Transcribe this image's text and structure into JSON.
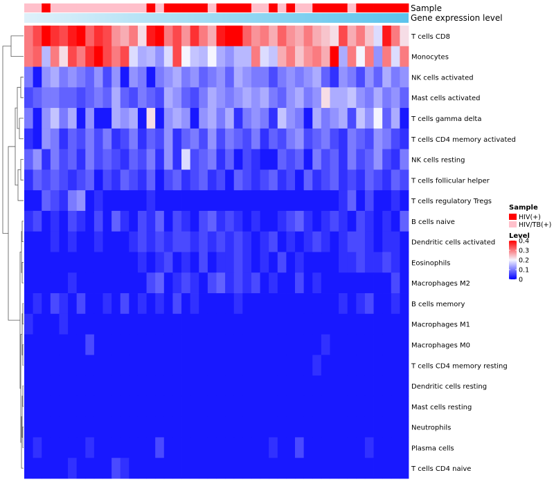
{
  "chart_data": {
    "type": "heatmap",
    "title": "",
    "annotation_tracks": [
      "Sample",
      "Gene expression level"
    ],
    "sample_groups": [
      "HIV/TB(+)",
      "HIV/TB(+)",
      "HIV(+)",
      "HIV/TB(+)",
      "HIV/TB(+)",
      "HIV/TB(+)",
      "HIV/TB(+)",
      "HIV/TB(+)",
      "HIV/TB(+)",
      "HIV/TB(+)",
      "HIV/TB(+)",
      "HIV/TB(+)",
      "HIV/TB(+)",
      "HIV/TB(+)",
      "HIV(+)",
      "HIV/TB(+)",
      "HIV(+)",
      "HIV(+)",
      "HIV(+)",
      "HIV(+)",
      "HIV(+)",
      "HIV/TB(+)",
      "HIV(+)",
      "HIV(+)",
      "HIV(+)",
      "HIV(+)",
      "HIV/TB(+)",
      "HIV/TB(+)",
      "HIV(+)",
      "HIV/TB(+)",
      "HIV(+)",
      "HIV/TB(+)",
      "HIV/TB(+)",
      "HIV(+)",
      "HIV(+)",
      "HIV(+)",
      "HIV(+)",
      "HIV/TB(+)",
      "HIV(+)",
      "HIV(+)",
      "HIV(+)",
      "HIV(+)",
      "HIV(+)",
      "HIV(+)"
    ],
    "cell_types": [
      "T cells CD8",
      "Monocytes",
      "NK cells activated",
      "Mast cells activated",
      "T cells gamma delta",
      "T cells CD4 memory activated",
      "NK cells resting",
      "T cells follicular helper",
      "T cells regulatory  Tregs",
      "B cells naive",
      "Dendritic cells activated",
      "Eosinophils",
      "Macrophages M2",
      "B cells memory",
      "Macrophages M1",
      "Macrophages M0",
      "T cells CD4 memory resting",
      "Dendritic cells resting",
      "Mast cells resting",
      "Neutrophils",
      "Plasma cells",
      "T cells CD4 naive"
    ],
    "values": [
      [
        0.3,
        0.34,
        0.4,
        0.36,
        0.34,
        0.38,
        0.4,
        0.32,
        0.36,
        0.34,
        0.28,
        0.26,
        0.3,
        0.22,
        0.38,
        0.4,
        0.3,
        0.34,
        0.28,
        0.36,
        0.3,
        0.26,
        0.38,
        0.4,
        0.4,
        0.32,
        0.28,
        0.3,
        0.26,
        0.32,
        0.28,
        0.26,
        0.3,
        0.26,
        0.24,
        0.22,
        0.34,
        0.26,
        0.3,
        0.24,
        0.18,
        0.38,
        0.3,
        0.22
      ],
      [
        0.3,
        0.32,
        0.15,
        0.3,
        0.22,
        0.34,
        0.3,
        0.36,
        0.4,
        0.34,
        0.3,
        0.34,
        0.18,
        0.14,
        0.15,
        0.12,
        0.18,
        0.34,
        0.2,
        0.16,
        0.15,
        0.2,
        0.14,
        0.12,
        0.15,
        0.15,
        0.3,
        0.18,
        0.16,
        0.26,
        0.3,
        0.24,
        0.28,
        0.3,
        0.26,
        0.4,
        0.14,
        0.3,
        0.2,
        0.3,
        0.12,
        0.3,
        0.18,
        0.3
      ],
      [
        0.1,
        0.02,
        0.12,
        0.14,
        0.1,
        0.12,
        0.1,
        0.08,
        0.12,
        0.06,
        0.12,
        0.02,
        0.12,
        0.1,
        0.02,
        0.1,
        0.12,
        0.14,
        0.1,
        0.12,
        0.08,
        0.1,
        0.12,
        0.08,
        0.14,
        0.12,
        0.1,
        0.1,
        0.06,
        0.1,
        0.12,
        0.1,
        0.12,
        0.14,
        0.08,
        0.04,
        0.12,
        0.1,
        0.06,
        0.12,
        0.08,
        0.14,
        0.1,
        0.12
      ],
      [
        0.06,
        0.08,
        0.1,
        0.1,
        0.08,
        0.08,
        0.06,
        0.08,
        0.1,
        0.08,
        0.14,
        0.08,
        0.06,
        0.1,
        0.08,
        0.06,
        0.14,
        0.12,
        0.08,
        0.06,
        0.1,
        0.14,
        0.12,
        0.1,
        0.12,
        0.14,
        0.12,
        0.14,
        0.1,
        0.08,
        0.12,
        0.14,
        0.1,
        0.12,
        0.22,
        0.14,
        0.14,
        0.16,
        0.12,
        0.1,
        0.14,
        0.1,
        0.12,
        0.08
      ],
      [
        0.1,
        0.02,
        0.12,
        0.16,
        0.1,
        0.14,
        0.02,
        0.12,
        0.02,
        0.02,
        0.14,
        0.12,
        0.14,
        0.02,
        0.22,
        0.02,
        0.12,
        0.14,
        0.12,
        0.02,
        0.12,
        0.14,
        0.1,
        0.14,
        0.04,
        0.1,
        0.12,
        0.1,
        0.04,
        0.16,
        0.12,
        0.1,
        0.02,
        0.14,
        0.1,
        0.12,
        0.14,
        0.06,
        0.16,
        0.12,
        0.2,
        0.08,
        0.14,
        0.02
      ],
      [
        0.04,
        0.02,
        0.12,
        0.1,
        0.04,
        0.08,
        0.06,
        0.1,
        0.06,
        0.1,
        0.04,
        0.06,
        0.1,
        0.04,
        0.08,
        0.06,
        0.12,
        0.04,
        0.08,
        0.1,
        0.06,
        0.12,
        0.06,
        0.1,
        0.08,
        0.06,
        0.1,
        0.04,
        0.08,
        0.06,
        0.1,
        0.12,
        0.06,
        0.08,
        0.1,
        0.06,
        0.04,
        0.1,
        0.08,
        0.06,
        0.12,
        0.1,
        0.06,
        0.04
      ],
      [
        0.08,
        0.12,
        0.04,
        0.1,
        0.06,
        0.08,
        0.04,
        0.1,
        0.06,
        0.08,
        0.06,
        0.04,
        0.08,
        0.06,
        0.1,
        0.04,
        0.12,
        0.04,
        0.18,
        0.06,
        0.08,
        0.1,
        0.04,
        0.08,
        0.02,
        0.06,
        0.04,
        0.02,
        0.02,
        0.08,
        0.06,
        0.08,
        0.02,
        0.1,
        0.06,
        0.08,
        0.04,
        0.1,
        0.06,
        0.08,
        0.12,
        0.06,
        0.04,
        0.1
      ],
      [
        0.04,
        0.08,
        0.06,
        0.08,
        0.06,
        0.04,
        0.06,
        0.08,
        0.02,
        0.06,
        0.04,
        0.08,
        0.06,
        0.04,
        0.08,
        0.02,
        0.06,
        0.08,
        0.04,
        0.06,
        0.08,
        0.04,
        0.06,
        0.02,
        0.08,
        0.06,
        0.04,
        0.06,
        0.08,
        0.04,
        0.06,
        0.02,
        0.08,
        0.04,
        0.06,
        0.08,
        0.04,
        0.06,
        0.04,
        0.08,
        0.06,
        0.04,
        0.08,
        0.06
      ],
      [
        0.02,
        0.02,
        0.08,
        0.06,
        0.04,
        0.1,
        0.12,
        0.02,
        0.04,
        0.02,
        0.02,
        0.02,
        0.02,
        0.02,
        0.04,
        0.02,
        0.02,
        0.02,
        0.02,
        0.02,
        0.02,
        0.02,
        0.02,
        0.02,
        0.02,
        0.02,
        0.02,
        0.02,
        0.02,
        0.02,
        0.02,
        0.02,
        0.02,
        0.02,
        0.02,
        0.02,
        0.04,
        0.08,
        0.02,
        0.06,
        0.02,
        0.02,
        0.04,
        0.02
      ],
      [
        0.04,
        0.06,
        0.02,
        0.04,
        0.02,
        0.06,
        0.04,
        0.02,
        0.06,
        0.02,
        0.08,
        0.04,
        0.02,
        0.06,
        0.04,
        0.08,
        0.02,
        0.06,
        0.04,
        0.02,
        0.06,
        0.08,
        0.04,
        0.06,
        0.04,
        0.02,
        0.04,
        0.02,
        0.02,
        0.04,
        0.06,
        0.08,
        0.04,
        0.02,
        0.04,
        0.06,
        0.04,
        0.02,
        0.06,
        0.04,
        0.02,
        0.04,
        0.02,
        0.08
      ],
      [
        0.02,
        0.02,
        0.02,
        0.04,
        0.02,
        0.04,
        0.02,
        0.02,
        0.04,
        0.02,
        0.02,
        0.02,
        0.04,
        0.06,
        0.04,
        0.06,
        0.04,
        0.06,
        0.06,
        0.04,
        0.06,
        0.04,
        0.06,
        0.04,
        0.06,
        0.04,
        0.02,
        0.04,
        0.06,
        0.02,
        0.04,
        0.02,
        0.04,
        0.06,
        0.04,
        0.02,
        0.04,
        0.06,
        0.06,
        0.04,
        0.02,
        0.04,
        0.04,
        0.02
      ],
      [
        0.02,
        0.02,
        0.02,
        0.02,
        0.02,
        0.02,
        0.02,
        0.02,
        0.02,
        0.02,
        0.02,
        0.02,
        0.02,
        0.04,
        0.02,
        0.04,
        0.06,
        0.02,
        0.04,
        0.02,
        0.06,
        0.02,
        0.04,
        0.04,
        0.06,
        0.04,
        0.02,
        0.04,
        0.02,
        0.06,
        0.02,
        0.04,
        0.02,
        0.02,
        0.02,
        0.02,
        0.04,
        0.04,
        0.06,
        0.04,
        0.04,
        0.06,
        0.04,
        0.02
      ],
      [
        0.02,
        0.02,
        0.02,
        0.02,
        0.02,
        0.04,
        0.02,
        0.02,
        0.02,
        0.02,
        0.02,
        0.02,
        0.02,
        0.02,
        0.06,
        0.08,
        0.02,
        0.04,
        0.06,
        0.04,
        0.02,
        0.06,
        0.08,
        0.04,
        0.06,
        0.04,
        0.06,
        0.02,
        0.04,
        0.02,
        0.02,
        0.06,
        0.02,
        0.04,
        0.02,
        0.02,
        0.02,
        0.02,
        0.02,
        0.02,
        0.02,
        0.02,
        0.06,
        0.02
      ],
      [
        0.02,
        0.04,
        0.02,
        0.06,
        0.04,
        0.02,
        0.06,
        0.02,
        0.02,
        0.04,
        0.02,
        0.06,
        0.02,
        0.04,
        0.02,
        0.04,
        0.02,
        0.06,
        0.02,
        0.04,
        0.02,
        0.02,
        0.02,
        0.02,
        0.04,
        0.02,
        0.02,
        0.02,
        0.02,
        0.02,
        0.02,
        0.02,
        0.02,
        0.02,
        0.02,
        0.02,
        0.04,
        0.02,
        0.04,
        0.06,
        0.02,
        0.02,
        0.04,
        0.02
      ],
      [
        0.04,
        0.02,
        0.02,
        0.02,
        0.04,
        0.02,
        0.02,
        0.02,
        0.02,
        0.02,
        0.02,
        0.02,
        0.02,
        0.02,
        0.02,
        0.02,
        0.02,
        0.02,
        0.02,
        0.02,
        0.02,
        0.02,
        0.02,
        0.02,
        0.02,
        0.02,
        0.02,
        0.02,
        0.02,
        0.02,
        0.02,
        0.02,
        0.02,
        0.02,
        0.02,
        0.02,
        0.02,
        0.02,
        0.02,
        0.02,
        0.02,
        0.02,
        0.02,
        0.02
      ],
      [
        0.02,
        0.02,
        0.02,
        0.02,
        0.02,
        0.02,
        0.02,
        0.06,
        0.02,
        0.02,
        0.02,
        0.02,
        0.02,
        0.02,
        0.02,
        0.02,
        0.02,
        0.02,
        0.02,
        0.02,
        0.02,
        0.02,
        0.02,
        0.02,
        0.02,
        0.02,
        0.02,
        0.02,
        0.02,
        0.02,
        0.02,
        0.02,
        0.02,
        0.02,
        0.04,
        0.02,
        0.02,
        0.02,
        0.02,
        0.02,
        0.02,
        0.02,
        0.02,
        0.02
      ],
      [
        0.02,
        0.02,
        0.02,
        0.02,
        0.02,
        0.02,
        0.02,
        0.02,
        0.02,
        0.02,
        0.02,
        0.02,
        0.02,
        0.02,
        0.02,
        0.02,
        0.02,
        0.02,
        0.02,
        0.02,
        0.02,
        0.02,
        0.02,
        0.02,
        0.02,
        0.02,
        0.02,
        0.02,
        0.02,
        0.02,
        0.02,
        0.02,
        0.02,
        0.04,
        0.02,
        0.02,
        0.02,
        0.02,
        0.02,
        0.02,
        0.02,
        0.02,
        0.02,
        0.02
      ],
      [
        0.02,
        0.02,
        0.02,
        0.02,
        0.02,
        0.02,
        0.02,
        0.02,
        0.02,
        0.02,
        0.02,
        0.02,
        0.02,
        0.02,
        0.02,
        0.02,
        0.02,
        0.02,
        0.02,
        0.02,
        0.02,
        0.02,
        0.02,
        0.02,
        0.02,
        0.02,
        0.02,
        0.02,
        0.02,
        0.02,
        0.02,
        0.02,
        0.02,
        0.02,
        0.02,
        0.02,
        0.02,
        0.02,
        0.02,
        0.02,
        0.02,
        0.02,
        0.02,
        0.02
      ],
      [
        0.02,
        0.02,
        0.02,
        0.02,
        0.02,
        0.02,
        0.02,
        0.02,
        0.02,
        0.02,
        0.02,
        0.02,
        0.02,
        0.02,
        0.02,
        0.02,
        0.02,
        0.02,
        0.02,
        0.02,
        0.02,
        0.02,
        0.02,
        0.02,
        0.02,
        0.02,
        0.02,
        0.02,
        0.02,
        0.02,
        0.02,
        0.02,
        0.02,
        0.02,
        0.02,
        0.02,
        0.02,
        0.02,
        0.02,
        0.02,
        0.02,
        0.02,
        0.02,
        0.02
      ],
      [
        0.02,
        0.02,
        0.02,
        0.02,
        0.02,
        0.02,
        0.02,
        0.02,
        0.02,
        0.02,
        0.02,
        0.02,
        0.02,
        0.02,
        0.02,
        0.02,
        0.02,
        0.02,
        0.02,
        0.02,
        0.02,
        0.02,
        0.02,
        0.02,
        0.02,
        0.02,
        0.02,
        0.02,
        0.02,
        0.02,
        0.02,
        0.02,
        0.02,
        0.02,
        0.02,
        0.02,
        0.02,
        0.02,
        0.02,
        0.02,
        0.02,
        0.02,
        0.02,
        0.02
      ],
      [
        0.02,
        0.04,
        0.02,
        0.02,
        0.02,
        0.02,
        0.02,
        0.04,
        0.02,
        0.02,
        0.02,
        0.02,
        0.02,
        0.02,
        0.02,
        0.06,
        0.02,
        0.02,
        0.02,
        0.02,
        0.02,
        0.02,
        0.02,
        0.02,
        0.02,
        0.02,
        0.02,
        0.02,
        0.04,
        0.02,
        0.02,
        0.06,
        0.02,
        0.02,
        0.02,
        0.02,
        0.02,
        0.02,
        0.02,
        0.04,
        0.02,
        0.02,
        0.02,
        0.02
      ],
      [
        0.02,
        0.02,
        0.02,
        0.02,
        0.02,
        0.04,
        0.02,
        0.02,
        0.02,
        0.02,
        0.06,
        0.04,
        0.02,
        0.02,
        0.02,
        0.02,
        0.02,
        0.02,
        0.02,
        0.02,
        0.02,
        0.02,
        0.02,
        0.02,
        0.02,
        0.02,
        0.02,
        0.02,
        0.02,
        0.02,
        0.02,
        0.02,
        0.02,
        0.02,
        0.02,
        0.02,
        0.02,
        0.02,
        0.02,
        0.02,
        0.02,
        0.02,
        0.02,
        0.02
      ]
    ],
    "legend": {
      "sample_title": "Sample",
      "sample_entries": [
        {
          "label": "HIV(+)",
          "color": "#ff0000"
        },
        {
          "label": "HIV/TB(+)",
          "color": "#ffc0cb"
        }
      ],
      "level_title": "Level",
      "level_ticks": [
        "0.4",
        "0.3",
        "0.2",
        "0.1",
        "0"
      ],
      "level_range": [
        0,
        0.4
      ]
    },
    "colors": {
      "low": "#0000ff",
      "mid": "#f5f5ff",
      "high": "#ff0000",
      "gene_bar_start": "#dff1fa",
      "gene_bar_end": "#5bc3ec"
    }
  }
}
